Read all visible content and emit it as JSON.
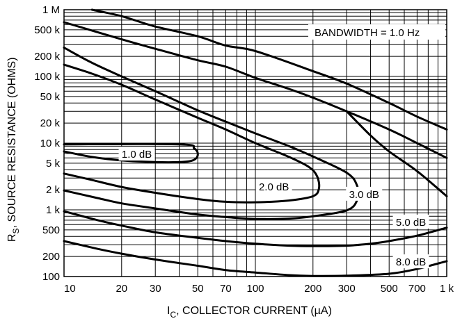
{
  "chart_data": {
    "type": "line",
    "xscale": "log",
    "yscale": "log",
    "xlim": [
      10,
      1000
    ],
    "ylim": [
      100,
      1000000
    ],
    "grid": true,
    "xlabel": "I_C, COLLECTOR CURRENT (µA)",
    "xlabel_main": "I",
    "xlabel_sub": "C",
    "xlabel_rest": ", COLLECTOR CURRENT (µA)",
    "ylabel": "R_S, SOURCE RESISTANCE (OHMS)",
    "ylabel_main": "R",
    "ylabel_sub": "S",
    "ylabel_rest": ", SOURCE RESISTANCE (OHMS)",
    "x_ticks": [
      {
        "value": 10,
        "label": "10"
      },
      {
        "value": 20,
        "label": "20"
      },
      {
        "value": 30,
        "label": "30"
      },
      {
        "value": 50,
        "label": "50"
      },
      {
        "value": 70,
        "label": "70"
      },
      {
        "value": 100,
        "label": "100"
      },
      {
        "value": 200,
        "label": "200"
      },
      {
        "value": 300,
        "label": "300"
      },
      {
        "value": 500,
        "label": "500"
      },
      {
        "value": 700,
        "label": "700"
      },
      {
        "value": 1000,
        "label": "1 k"
      }
    ],
    "y_ticks": [
      {
        "value": 100,
        "label": "100"
      },
      {
        "value": 200,
        "label": "200"
      },
      {
        "value": 500,
        "label": "500"
      },
      {
        "value": 1000,
        "label": "1 k"
      },
      {
        "value": 2000,
        "label": "2 k"
      },
      {
        "value": 5000,
        "label": "5 k"
      },
      {
        "value": 10000,
        "label": "10 k"
      },
      {
        "value": 20000,
        "label": "20 k"
      },
      {
        "value": 50000,
        "label": "50 k"
      },
      {
        "value": 100000,
        "label": "100 k"
      },
      {
        "value": 200000,
        "label": "200 k"
      },
      {
        "value": 500000,
        "label": "500 k"
      },
      {
        "value": 1000000,
        "label": "1 M"
      }
    ],
    "annotation": "BANDWIDTH = 1.0 Hz",
    "series": [
      {
        "name": "1.0 dB",
        "points": [
          [
            10,
            7500
          ],
          [
            14,
            6200
          ],
          [
            20,
            5500
          ],
          [
            30,
            5200
          ],
          [
            40,
            5200
          ],
          [
            47,
            5500
          ],
          [
            50,
            6600
          ],
          [
            48,
            8300
          ],
          [
            40,
            9600
          ],
          [
            10,
            9600
          ]
        ]
      },
      {
        "name": "2.0 dB",
        "points": [
          [
            10,
            3500
          ],
          [
            14,
            2800
          ],
          [
            20,
            2200
          ],
          [
            30,
            1800
          ],
          [
            50,
            1450
          ],
          [
            70,
            1320
          ],
          [
            100,
            1300
          ],
          [
            150,
            1380
          ],
          [
            200,
            1600
          ],
          [
            215,
            2100
          ],
          [
            210,
            3200
          ],
          [
            190,
            4400
          ],
          [
            150,
            6200
          ],
          [
            100,
            10000
          ],
          [
            70,
            16000
          ],
          [
            50,
            24000
          ],
          [
            30,
            45000
          ],
          [
            20,
            75000
          ],
          [
            14,
            110000
          ],
          [
            10,
            150000
          ]
        ]
      },
      {
        "name": "3.0 dB",
        "points": [
          [
            10,
            1950
          ],
          [
            15,
            1500
          ],
          [
            20,
            1250
          ],
          [
            30,
            1050
          ],
          [
            50,
            850
          ],
          [
            70,
            780
          ],
          [
            100,
            730
          ],
          [
            150,
            740
          ],
          [
            200,
            800
          ],
          [
            300,
            980
          ],
          [
            340,
            1400
          ],
          [
            340,
            2300
          ],
          [
            300,
            3600
          ],
          [
            200,
            6300
          ],
          [
            150,
            9000
          ],
          [
            100,
            14000
          ],
          [
            70,
            21000
          ],
          [
            50,
            31000
          ],
          [
            30,
            60000
          ],
          [
            20,
            100000
          ],
          [
            14,
            160000
          ],
          [
            10,
            270000
          ]
        ]
      },
      {
        "name": "5.0 dB",
        "points": [
          [
            10,
            950
          ],
          [
            15,
            700
          ],
          [
            20,
            580
          ],
          [
            30,
            460
          ],
          [
            50,
            380
          ],
          [
            70,
            340
          ],
          [
            100,
            310
          ],
          [
            150,
            290
          ],
          [
            200,
            285
          ],
          [
            300,
            290
          ],
          [
            400,
            310
          ],
          [
            500,
            340
          ],
          [
            700,
            410
          ],
          [
            1000,
            540
          ]
        ]
      },
      {
        "name": "5.0 dB upper",
        "points": [
          [
            10,
            650000
          ],
          [
            20,
            360000
          ],
          [
            30,
            260000
          ],
          [
            50,
            175000
          ],
          [
            70,
            140000
          ],
          [
            100,
            95000
          ],
          [
            150,
            65000
          ],
          [
            200,
            48000
          ],
          [
            300,
            30000
          ],
          [
            500,
            16000
          ],
          [
            700,
            10000
          ],
          [
            1000,
            6000
          ]
        ]
      },
      {
        "name": "8.0 dB",
        "points": [
          [
            10,
            340
          ],
          [
            15,
            260
          ],
          [
            20,
            220
          ],
          [
            30,
            180
          ],
          [
            50,
            145
          ],
          [
            70,
            125
          ],
          [
            100,
            115
          ],
          [
            150,
            105
          ],
          [
            200,
            102
          ],
          [
            300,
            103
          ],
          [
            500,
            110
          ],
          [
            700,
            130
          ],
          [
            1000,
            170
          ]
        ]
      },
      {
        "name": "8.0 dB upper",
        "points": [
          [
            14,
            1000000
          ],
          [
            20,
            800000
          ],
          [
            30,
            560000
          ],
          [
            50,
            400000
          ],
          [
            70,
            290000
          ],
          [
            100,
            240000
          ],
          [
            200,
            120000
          ],
          [
            300,
            78000
          ],
          [
            500,
            40000
          ],
          [
            700,
            25000
          ],
          [
            1000,
            16000
          ]
        ]
      },
      {
        "name": "3.0 dB upper",
        "points": [
          [
            300,
            30000
          ],
          [
            400,
            13000
          ],
          [
            500,
            7500
          ],
          [
            700,
            3800
          ],
          [
            1000,
            1600
          ]
        ]
      }
    ],
    "curve_labels": [
      {
        "text": "1.0 dB",
        "x": 24,
        "y": 6800
      },
      {
        "text": "2.0 dB",
        "x": 125,
        "y": 2200
      },
      {
        "text": "3.0 dB",
        "x": 370,
        "y": 1700
      },
      {
        "text": "5.0 dB",
        "x": 650,
        "y": 650
      },
      {
        "text": "8.0 dB",
        "x": 650,
        "y": 165
      }
    ]
  }
}
